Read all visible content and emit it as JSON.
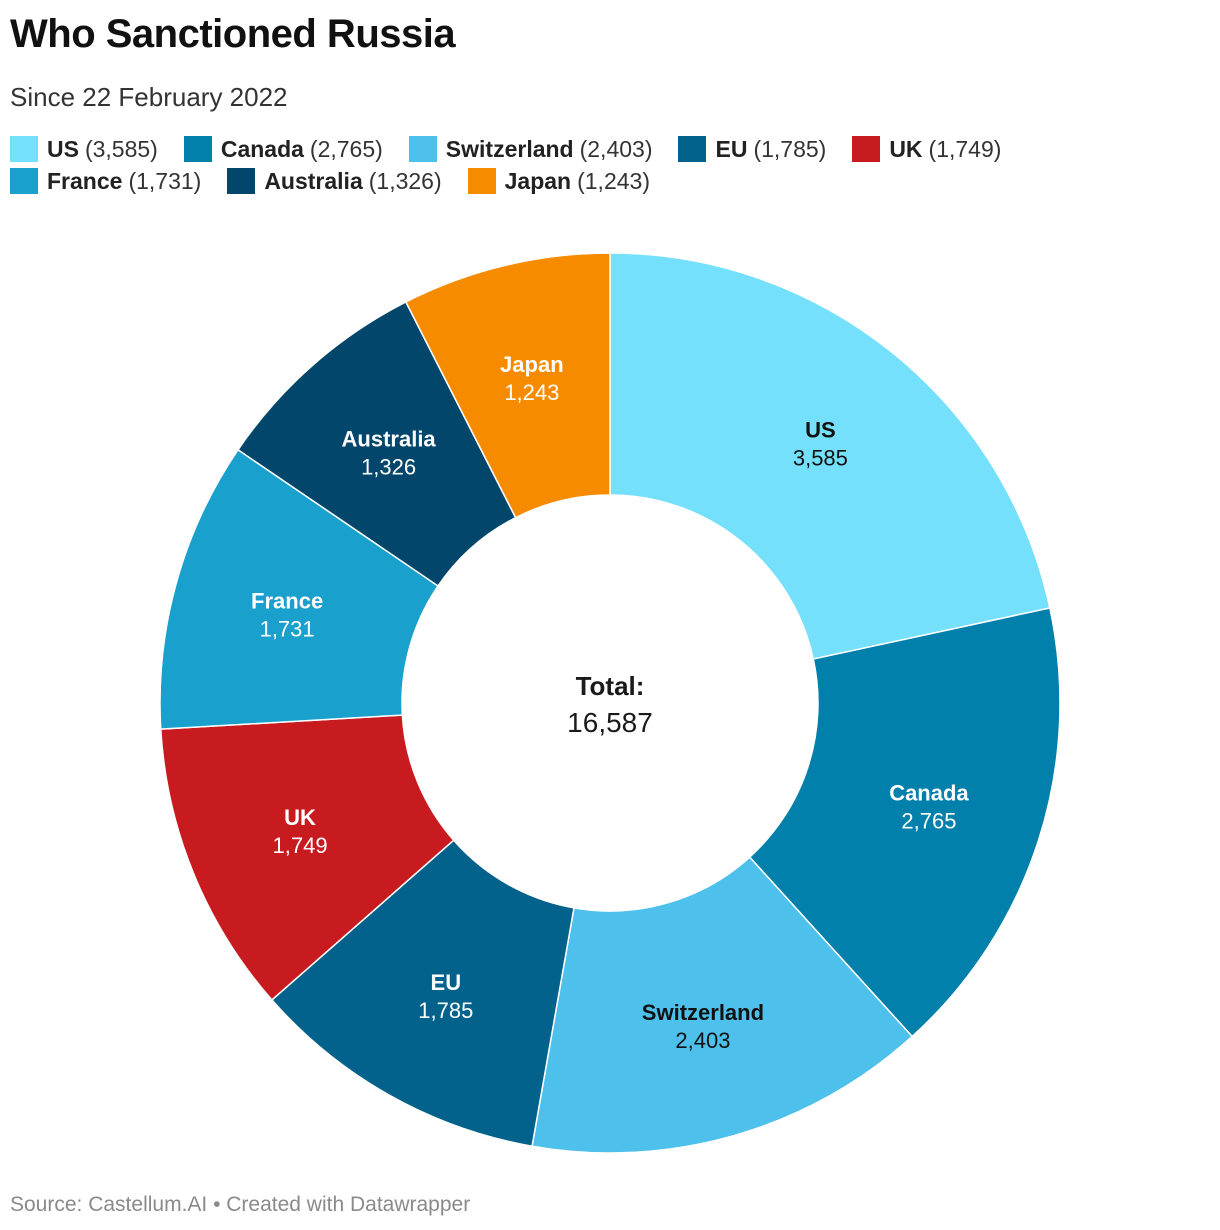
{
  "title": "Who Sanctioned Russia",
  "subtitle": "Since 22 February 2022",
  "source": "Source: Castellum.AI • Created with Datawrapper",
  "legend_rows": [
    [
      "US",
      "Canada",
      "Switzerland",
      "EU",
      "UK"
    ],
    [
      "France",
      "Australia",
      "Japan"
    ]
  ],
  "chart_data": {
    "type": "pie",
    "variant": "donut",
    "center_label": "Total:",
    "center_value": "16,587",
    "slices": [
      {
        "name": "US",
        "value": 3585,
        "display": "3,585",
        "color": "#74e0fc",
        "text_color": "#111111"
      },
      {
        "name": "Canada",
        "value": 2765,
        "display": "2,765",
        "color": "#0080ab",
        "text_color": "#ffffff"
      },
      {
        "name": "Switzerland",
        "value": 2403,
        "display": "2,403",
        "color": "#4dc0ec",
        "text_color": "#111111"
      },
      {
        "name": "EU",
        "value": 1785,
        "display": "1,785",
        "color": "#02628b",
        "text_color": "#ffffff"
      },
      {
        "name": "UK",
        "value": 1749,
        "display": "1,749",
        "color": "#c81b1f",
        "text_color": "#ffffff"
      },
      {
        "name": "France",
        "value": 1731,
        "display": "1,731",
        "color": "#19a0cd",
        "text_color": "#ffffff"
      },
      {
        "name": "Australia",
        "value": 1326,
        "display": "1,326",
        "color": "#02466b",
        "text_color": "#ffffff"
      },
      {
        "name": "Japan",
        "value": 1243,
        "display": "1,243",
        "color": "#f78b00",
        "text_color": "#ffffff"
      }
    ]
  }
}
